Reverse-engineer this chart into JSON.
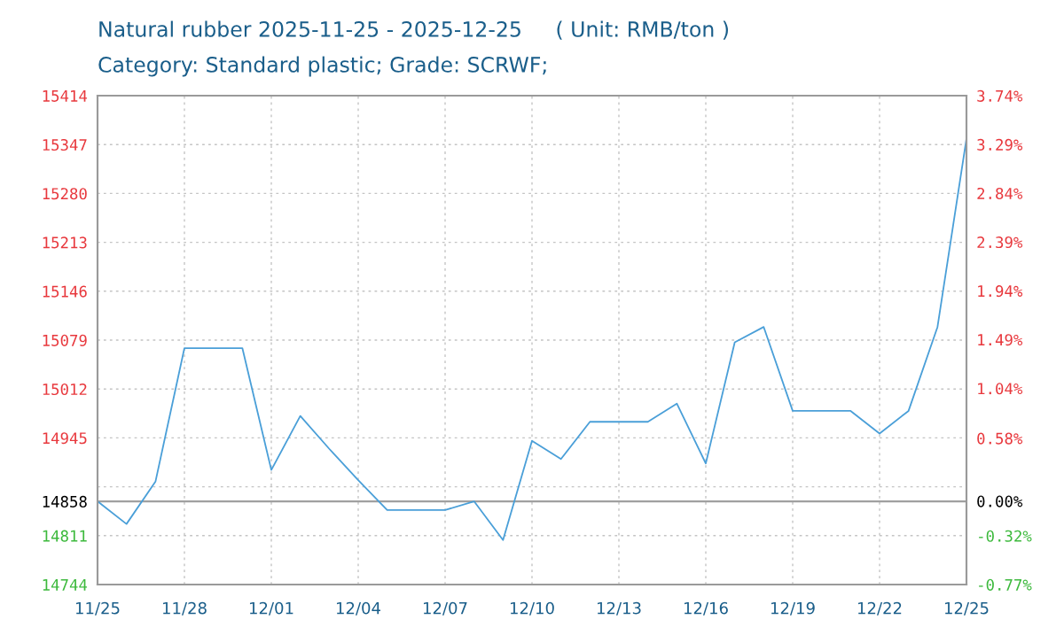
{
  "chart_data": {
    "type": "line",
    "title": "Natural rubber 2025-11-25 - 2025-12-25     ( Unit: RMB/ton )",
    "subtitle": "Category: Standard plastic; Grade: SCRWF;",
    "x": [
      "2025-11-25",
      "2025-11-26",
      "2025-11-27",
      "2025-11-28",
      "2025-11-29",
      "2025-11-30",
      "2025-12-01",
      "2025-12-02",
      "2025-12-03",
      "2025-12-04",
      "2025-12-05",
      "2025-12-06",
      "2025-12-07",
      "2025-12-08",
      "2025-12-09",
      "2025-12-10",
      "2025-12-11",
      "2025-12-12",
      "2025-12-13",
      "2025-12-14",
      "2025-12-15",
      "2025-12-16",
      "2025-12-17",
      "2025-12-18",
      "2025-12-19",
      "2025-12-20",
      "2025-12-21",
      "2025-12-22",
      "2025-12-23",
      "2025-12-24",
      "2025-12-25"
    ],
    "series": [
      {
        "color": "#4a9fd8",
        "values": [
          14858,
          14827,
          14885,
          15068,
          15068,
          15068,
          14901,
          14975,
          14930,
          14887,
          14846,
          14846,
          14846,
          14858,
          14805,
          14941,
          14916,
          14967,
          14967,
          14967,
          14992,
          14910,
          15076,
          15097,
          14982,
          14982,
          14982,
          14951,
          14982,
          15097,
          15355
        ]
      }
    ],
    "xlim": [
      "2025-11-25",
      "2025-12-25"
    ],
    "xticks": [
      {
        "value": "2025-11-25",
        "label": "11/25"
      },
      {
        "value": "2025-11-28",
        "label": "11/28"
      },
      {
        "value": "2025-12-01",
        "label": "12/01"
      },
      {
        "value": "2025-12-04",
        "label": "12/04"
      },
      {
        "value": "2025-12-07",
        "label": "12/07"
      },
      {
        "value": "2025-12-10",
        "label": "12/10"
      },
      {
        "value": "2025-12-13",
        "label": "12/13"
      },
      {
        "value": "2025-12-16",
        "label": "12/16"
      },
      {
        "value": "2025-12-19",
        "label": "12/19"
      },
      {
        "value": "2025-12-22",
        "label": "12/22"
      },
      {
        "value": "2025-12-25",
        "label": "12/25"
      }
    ],
    "ylim": [
      14744,
      15414
    ],
    "yticks": [
      14744,
      14811,
      14858,
      {
        "value": 14878,
        "label": null
      },
      14945,
      15012,
      15079,
      15146,
      15213,
      15280,
      15347,
      15414
    ],
    "y2lim": [
      -0.77,
      3.74
    ],
    "y2ticks": [
      {
        "value": -0.77,
        "label": "-0.77%"
      },
      {
        "value": -0.32,
        "label": "-0.32%"
      },
      {
        "value": 0,
        "label": "0.00%"
      },
      {
        "value": 0.58,
        "label": "0.58%"
      },
      {
        "value": 1.04,
        "label": "1.04%"
      },
      {
        "value": 1.49,
        "label": "1.49%"
      },
      {
        "value": 1.94,
        "label": "1.94%"
      },
      {
        "value": 2.39,
        "label": "2.39%"
      },
      {
        "value": 2.84,
        "label": "2.84%"
      },
      {
        "value": 3.29,
        "label": "3.29%"
      },
      {
        "value": 3.74,
        "label": "3.74%"
      }
    ],
    "ref_lines": [
      {
        "axis": "y",
        "value": 14858,
        "color": "#a0a0a0",
        "line_style": "solid"
      }
    ],
    "grid": true,
    "line_style": "solid"
  }
}
